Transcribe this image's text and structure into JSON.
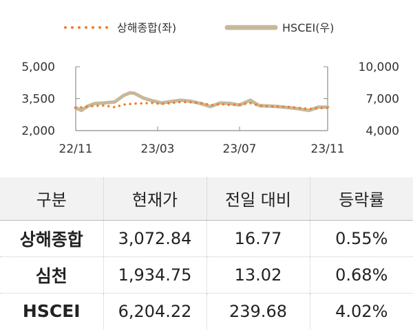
{
  "chart_data": {
    "type": "line",
    "x_ticks": [
      "22/11",
      "23/03",
      "23/07",
      "23/11"
    ],
    "x_range": [
      "2022-11-01",
      "2023-11-30"
    ],
    "y_left": {
      "ticks": [
        "5,000",
        "3,500",
        "2,000"
      ],
      "range": [
        2000,
        5000
      ]
    },
    "y_right": {
      "ticks": [
        "10,000",
        "7,000",
        "4,000"
      ],
      "range": [
        4000,
        10000
      ]
    },
    "grid": false,
    "legend_position": "top",
    "series": [
      {
        "name": "상해종합(좌)",
        "axis": "left",
        "style": "dotted",
        "color": "#ed7d31",
        "points": [
          [
            "2022-11-01",
            3070
          ],
          [
            "2022-11-15",
            3110
          ],
          [
            "2022-12-01",
            3160
          ],
          [
            "2022-12-15",
            3180
          ],
          [
            "2023-01-01",
            3100
          ],
          [
            "2023-01-15",
            3220
          ],
          [
            "2023-02-01",
            3270
          ],
          [
            "2023-02-15",
            3280
          ],
          [
            "2023-03-01",
            3300
          ],
          [
            "2023-03-15",
            3250
          ],
          [
            "2023-04-01",
            3300
          ],
          [
            "2023-04-15",
            3350
          ],
          [
            "2023-05-01",
            3330
          ],
          [
            "2023-05-15",
            3300
          ],
          [
            "2023-06-01",
            3200
          ],
          [
            "2023-06-15",
            3250
          ],
          [
            "2023-07-01",
            3200
          ],
          [
            "2023-07-15",
            3220
          ],
          [
            "2023-08-01",
            3290
          ],
          [
            "2023-08-15",
            3170
          ],
          [
            "2023-09-01",
            3130
          ],
          [
            "2023-09-15",
            3130
          ],
          [
            "2023-10-01",
            3110
          ],
          [
            "2023-10-15",
            3070
          ],
          [
            "2023-11-01",
            3020
          ],
          [
            "2023-11-15",
            3050
          ],
          [
            "2023-11-30",
            3073
          ]
        ]
      },
      {
        "name": "HSCEI(우)",
        "axis": "right",
        "style": "solid",
        "color": "#c6b99a",
        "points": [
          [
            "2022-11-01",
            6150
          ],
          [
            "2022-11-10",
            5900
          ],
          [
            "2022-11-20",
            6300
          ],
          [
            "2022-12-01",
            6550
          ],
          [
            "2022-12-15",
            6600
          ],
          [
            "2023-01-01",
            6700
          ],
          [
            "2023-01-15",
            7300
          ],
          [
            "2023-01-25",
            7550
          ],
          [
            "2023-02-01",
            7500
          ],
          [
            "2023-02-15",
            7050
          ],
          [
            "2023-03-01",
            6800
          ],
          [
            "2023-03-15",
            6600
          ],
          [
            "2023-04-01",
            6750
          ],
          [
            "2023-04-15",
            6850
          ],
          [
            "2023-05-01",
            6750
          ],
          [
            "2023-05-15",
            6550
          ],
          [
            "2023-05-31",
            6250
          ],
          [
            "2023-06-15",
            6600
          ],
          [
            "2023-07-01",
            6550
          ],
          [
            "2023-07-15",
            6400
          ],
          [
            "2023-08-01",
            6850
          ],
          [
            "2023-08-15",
            6350
          ],
          [
            "2023-09-01",
            6300
          ],
          [
            "2023-09-15",
            6250
          ],
          [
            "2023-10-01",
            6150
          ],
          [
            "2023-10-15",
            6050
          ],
          [
            "2023-11-01",
            5900
          ],
          [
            "2023-11-15",
            6200
          ],
          [
            "2023-11-30",
            6204
          ]
        ]
      }
    ]
  },
  "table": {
    "headers": [
      "구분",
      "현재가",
      "전일 대비",
      "등락률"
    ],
    "rows": [
      [
        "상해종합",
        "3,072.84",
        "16.77",
        "0.55%"
      ],
      [
        "심천",
        "1,934.75",
        "13.02",
        "0.68%"
      ],
      [
        "HSCEI",
        "6,204.22",
        "239.68",
        "4.02%"
      ]
    ]
  }
}
